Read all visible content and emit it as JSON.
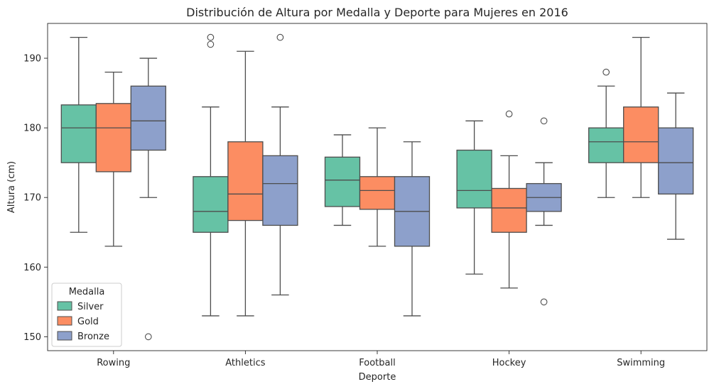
{
  "chart_data": {
    "type": "box",
    "title": "Distribución de Altura por Medalla y Deporte para Mujeres en 2016",
    "xlabel": "Deporte",
    "ylabel": "Altura (cm)",
    "ylim": [
      148,
      195
    ],
    "yticks": [
      150,
      160,
      170,
      180,
      190
    ],
    "categories": [
      "Rowing",
      "Athletics",
      "Football",
      "Hockey",
      "Swimming"
    ],
    "legend": {
      "title": "Medalla",
      "position": "lower-left"
    },
    "grid": false,
    "series": [
      {
        "name": "Silver",
        "color": "#66c2a5",
        "boxes": [
          {
            "whislo": 165,
            "q1": 175,
            "med": 180,
            "q3": 183.3,
            "whishi": 193,
            "fliers": []
          },
          {
            "whislo": 153,
            "q1": 165,
            "med": 168,
            "q3": 173,
            "whishi": 183,
            "fliers": [
              192,
              193
            ]
          },
          {
            "whislo": 166,
            "q1": 168.7,
            "med": 172.5,
            "q3": 175.8,
            "whishi": 179,
            "fliers": []
          },
          {
            "whislo": 159,
            "q1": 168.5,
            "med": 171,
            "q3": 176.8,
            "whishi": 181,
            "fliers": []
          },
          {
            "whislo": 170,
            "q1": 175,
            "med": 178,
            "q3": 180,
            "whishi": 186,
            "fliers": [
              188
            ]
          }
        ]
      },
      {
        "name": "Gold",
        "color": "#fc8d62",
        "boxes": [
          {
            "whislo": 163,
            "q1": 173.7,
            "med": 180,
            "q3": 183.5,
            "whishi": 188,
            "fliers": []
          },
          {
            "whislo": 153,
            "q1": 166.7,
            "med": 170.5,
            "q3": 178,
            "whishi": 191,
            "fliers": []
          },
          {
            "whislo": 163,
            "q1": 168.3,
            "med": 171,
            "q3": 173,
            "whishi": 180,
            "fliers": []
          },
          {
            "whislo": 157,
            "q1": 165,
            "med": 168.5,
            "q3": 171.3,
            "whishi": 176,
            "fliers": [
              182
            ]
          },
          {
            "whislo": 170,
            "q1": 175,
            "med": 178,
            "q3": 183,
            "whishi": 193,
            "fliers": []
          }
        ]
      },
      {
        "name": "Bronze",
        "color": "#8da0cb",
        "boxes": [
          {
            "whislo": 170,
            "q1": 176.8,
            "med": 181,
            "q3": 186,
            "whishi": 190,
            "fliers": [
              150
            ]
          },
          {
            "whislo": 156,
            "q1": 166,
            "med": 172,
            "q3": 176,
            "whishi": 183,
            "fliers": [
              193
            ]
          },
          {
            "whislo": 153,
            "q1": 163,
            "med": 168,
            "q3": 173,
            "whishi": 178,
            "fliers": []
          },
          {
            "whislo": 166,
            "q1": 168,
            "med": 170,
            "q3": 172,
            "whishi": 175,
            "fliers": [
              155,
              181
            ]
          },
          {
            "whislo": 164,
            "q1": 170.5,
            "med": 175,
            "q3": 180,
            "whishi": 185,
            "fliers": []
          }
        ]
      }
    ]
  }
}
